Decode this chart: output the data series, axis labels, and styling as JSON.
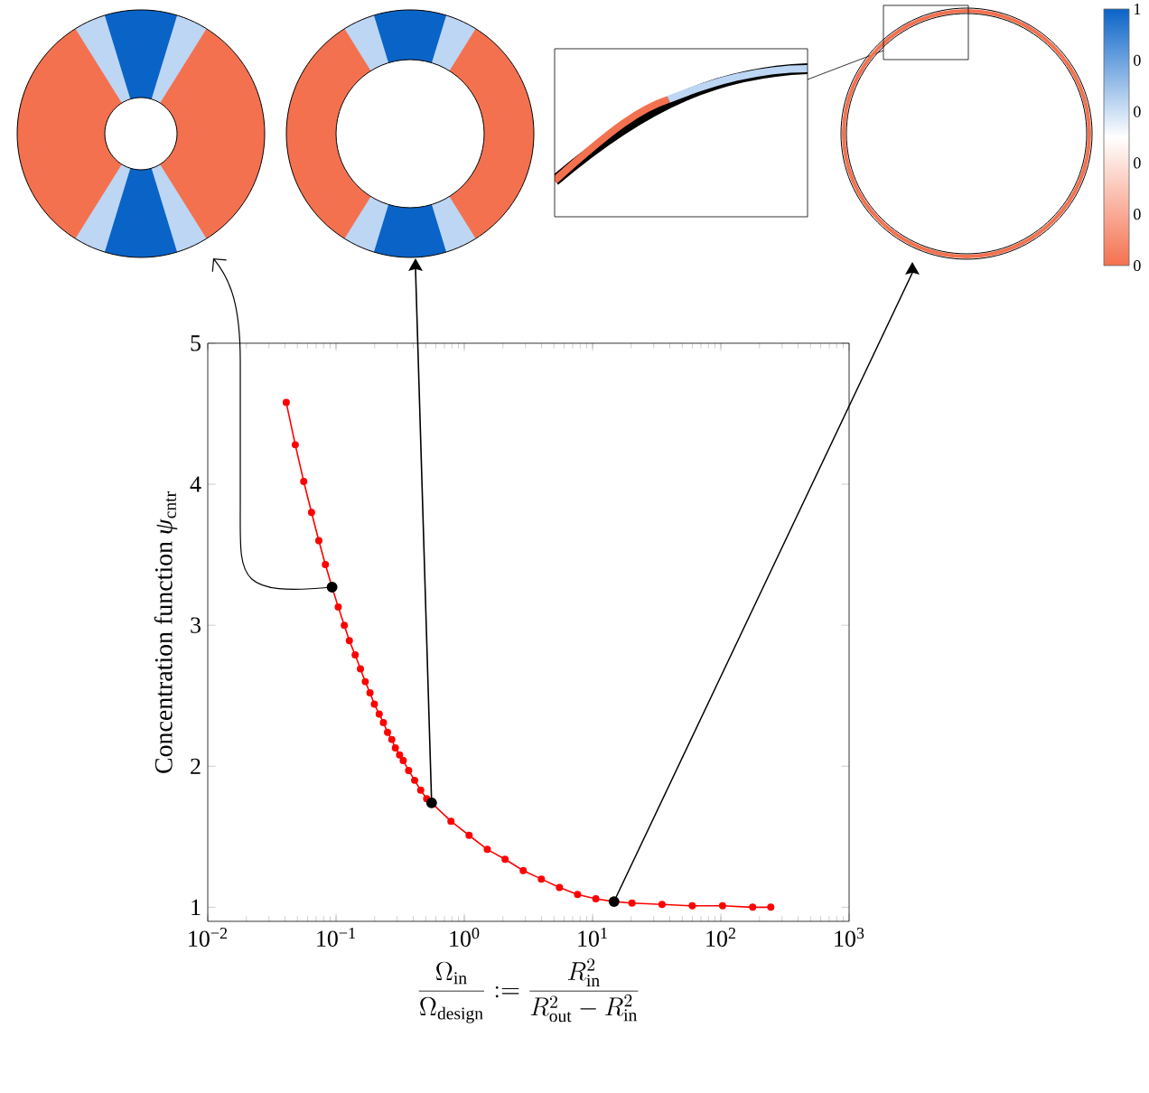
{
  "chart_data": {
    "type": "line",
    "xlabel": "\\frac{\\Omega_{\\mathrm{in}}}{\\Omega_{\\mathrm{design}}} := \\frac{R_{\\mathrm{in}}^2}{R_{\\mathrm{out}}^2 - R_{\\mathrm{in}}^2}",
    "ylabel": "Concentration function *ψ*$_{cntr}$",
    "series": [
      {
        "color": "#ff0000",
        "x": [
          0.0409,
          0.0481,
          0.056,
          0.0644,
          0.0734,
          0.0826,
          0.0931,
          0.104,
          0.116,
          0.127,
          0.141,
          0.155,
          0.169,
          0.184,
          0.199,
          0.217,
          0.234,
          0.252,
          0.272,
          0.29,
          0.313,
          0.334,
          0.368,
          0.41,
          0.457,
          0.509,
          0.556,
          0.787,
          1.09,
          1.51,
          2.08,
          2.88,
          3.99,
          5.52,
          7.64,
          10.6,
          14.7,
          20.3,
          34.8,
          59.8,
          103,
          177,
          245
        ],
        "values": [
          4.58,
          4.28,
          4.02,
          3.8,
          3.6,
          3.43,
          3.27,
          3.13,
          3.0,
          2.89,
          2.79,
          2.69,
          2.6,
          2.52,
          2.44,
          2.37,
          2.31,
          2.24,
          2.19,
          2.13,
          2.08,
          2.04,
          1.97,
          1.9,
          1.83,
          1.77,
          1.74,
          1.61,
          1.51,
          1.41,
          1.34,
          1.26,
          1.2,
          1.14,
          1.09,
          1.06,
          1.04,
          1.03,
          1.02,
          1.01,
          1.01,
          1.0,
          1.0
        ]
      },
      {
        "type": "scatter",
        "color": "#000000",
        "x": [
          0.0931,
          0.556,
          14.7
        ],
        "values": [
          3.27,
          1.74,
          1.04
        ]
      }
    ],
    "xlim": [
      0.01,
      1000
    ],
    "ylim": [
      0.9,
      5
    ],
    "xticks": [
      {
        "value": 0.01,
        "label": "10$^{−2}$"
      },
      {
        "value": 0.1,
        "label": "10$^{−1}$"
      },
      {
        "value": 1,
        "label": "10$^{0}$"
      },
      {
        "value": 10,
        "label": "10$^{1}$"
      },
      {
        "value": 100,
        "label": "10$^{2}$"
      },
      {
        "value": 1000,
        "label": "10$^{3}$"
      }
    ],
    "yticks": [
      1,
      2,
      3,
      4,
      5
    ],
    "log": "x",
    "marker": "circle",
    "annotations": [
      "1",
      "0",
      "0",
      "0",
      "0",
      "0"
    ]
  }
}
